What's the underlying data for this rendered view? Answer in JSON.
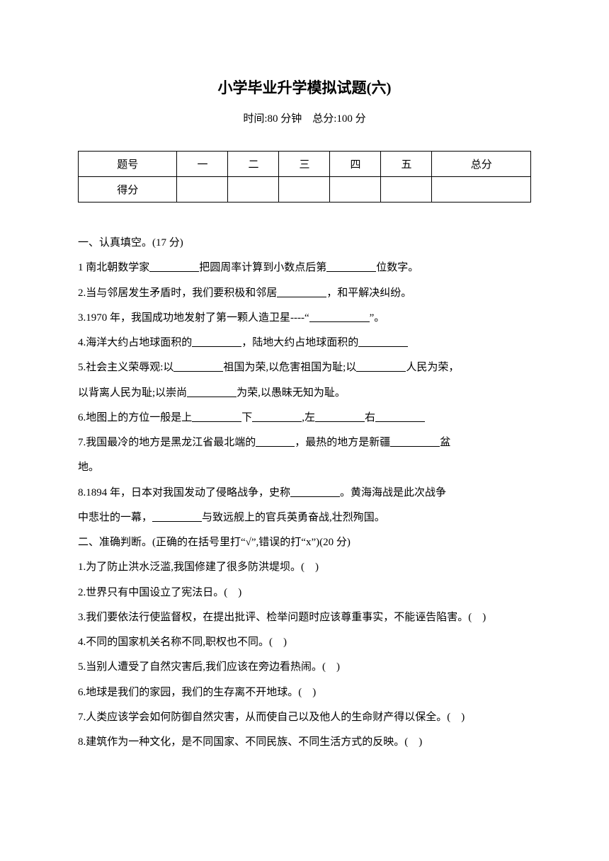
{
  "title": "小学毕业升学模拟试题(六)",
  "subtitle": "时间:80 分钟　总分:100 分",
  "table": {
    "row1": [
      "题号",
      "一",
      "二",
      "三",
      "四",
      "五",
      "总分"
    ],
    "row2_label": "得分"
  },
  "section1": {
    "heading": "一、认真填空。(17 分)",
    "q1_a": "1 南北朝数学家",
    "q1_b": "把圆周率计算到小数点后第",
    "q1_c": "位数字。",
    "q2_a": "2.当与邻居发生矛盾时，我们要积极和邻居",
    "q2_b": "，和平解决纠纷。",
    "q3_a": "3.1970 年，我国成功地发射了第一颗人造卫星----“",
    "q3_b": "”。",
    "q4_a": "4.海洋大约占地球面积的",
    "q4_b": "，陆地大约占地球面积的",
    "q5_a": "5.社会主义荣辱观:以",
    "q5_b": "祖国为荣,以危害祖国为耻;以",
    "q5_c": "人民为荣，",
    "q5_d": "以背离人民为耻;以崇尚",
    "q5_e": "为荣,以愚昧无知为耻。",
    "q6_a": "6.地图上的方位一般是上",
    "q6_b": "下",
    "q6_c": ",左",
    "q6_d": "右",
    "q7_a": "7.我国最冷的地方是黑龙江省最北端的",
    "q7_b": "，最热的地方是新疆",
    "q7_c": "盆",
    "q7_d": "地。",
    "q8_a": "8.1894 年，日本对我国发动了侵略战争，史称",
    "q8_b": "。黄海海战是此次战争",
    "q8_c": "中悲壮的一幕，",
    "q8_d": "与致远舰上的官兵英勇奋战,壮烈殉国。"
  },
  "section2": {
    "heading": "二、准确判断。(正确的在括号里打“√”,错误的打“x”)(20 分)",
    "q1": "1.为了防止洪水泛滥,我国修建了很多防洪堤坝。(　)",
    "q2": "2.世界只有中国设立了宪法日。(　)",
    "q3": "3.我们要依法行使监督权，在提出批评、检举问题时应该尊重事实，不能诬告陷害。(　)",
    "q4": "4.不同的国家机关名称不同,职权也不同。(　)",
    "q5": "5.当别人遭受了自然灾害后,我们应该在旁边看热闹。(　)",
    "q6": "6.地球是我们的家园，我们的生存离不开地球。(　)",
    "q7": "7.人类应该学会如何防御自然灾害，从而使自己以及他人的生命财产得以保全。(　)",
    "q8": "8.建筑作为一种文化，是不同国家、不同民族、不同生活方式的反映。(　)"
  }
}
